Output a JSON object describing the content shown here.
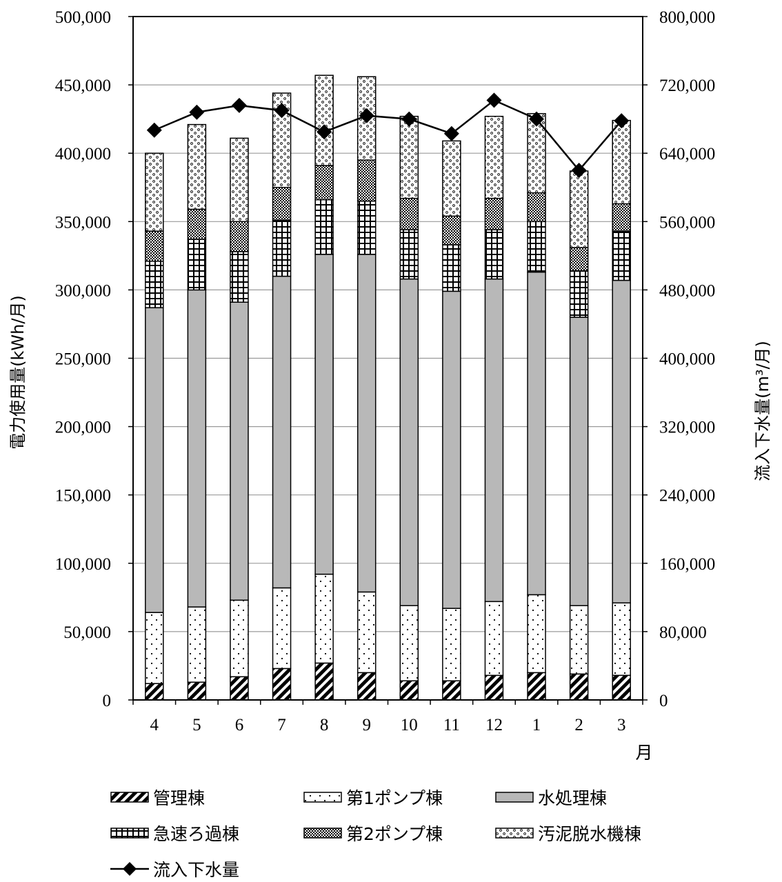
{
  "chart_data": {
    "type": "bar",
    "stacked": true,
    "categories": [
      "4",
      "5",
      "6",
      "7",
      "8",
      "9",
      "10",
      "11",
      "12",
      "1",
      "2",
      "3"
    ],
    "xlabel": "月",
    "ylabel": "電力使用量(kWh/月)",
    "y2label": "流入下水量(m³/月)",
    "ylim": [
      0,
      500000
    ],
    "y2lim": [
      0,
      800000
    ],
    "yticks": [
      "0",
      "50,000",
      "100,000",
      "150,000",
      "200,000",
      "250,000",
      "300,000",
      "350,000",
      "400,000",
      "450,000",
      "500,000"
    ],
    "y2ticks": [
      "0",
      "80,000",
      "160,000",
      "240,000",
      "320,000",
      "400,000",
      "480,000",
      "560,000",
      "640,000",
      "720,000",
      "800,000"
    ],
    "grid": true,
    "legend_position": "bottom",
    "series": [
      {
        "name": "管理棟",
        "pattern": "diagonal-hatch",
        "values": [
          12000,
          13000,
          17000,
          23000,
          27000,
          20000,
          14000,
          14000,
          18000,
          20000,
          19000,
          18000
        ]
      },
      {
        "name": "第1ポンプ棟",
        "pattern": "sparse-dots",
        "values": [
          52000,
          55000,
          56000,
          59000,
          65000,
          59000,
          55000,
          53000,
          54000,
          57000,
          50000,
          53000
        ]
      },
      {
        "name": "水処理棟",
        "pattern": "solid-gray",
        "color": "#b8b8b8",
        "values": [
          223000,
          232000,
          218000,
          228000,
          234000,
          247000,
          239000,
          232000,
          236000,
          236000,
          211000,
          236000
        ]
      },
      {
        "name": "急速ろ過棟",
        "pattern": "grid",
        "values": [
          34000,
          37000,
          37000,
          41000,
          40000,
          39000,
          36000,
          34000,
          36000,
          37000,
          34000,
          36000
        ]
      },
      {
        "name": "第2ポンプ棟",
        "pattern": "dense-dots",
        "values": [
          22000,
          22000,
          22000,
          24000,
          25000,
          30000,
          23000,
          21000,
          23000,
          21000,
          17000,
          20000
        ]
      },
      {
        "name": "汚泥脱水機棟",
        "pattern": "small-circles",
        "values": [
          57000,
          62000,
          61000,
          69000,
          66000,
          61000,
          60000,
          55000,
          60000,
          58000,
          56000,
          61000
        ]
      }
    ],
    "line_series": {
      "name": "流入下水量",
      "axis": "right",
      "color": "#000000",
      "marker": "diamond",
      "values": [
        667000,
        688000,
        696000,
        690000,
        665000,
        684000,
        680000,
        663000,
        702000,
        680000,
        620000,
        678000
      ]
    }
  }
}
